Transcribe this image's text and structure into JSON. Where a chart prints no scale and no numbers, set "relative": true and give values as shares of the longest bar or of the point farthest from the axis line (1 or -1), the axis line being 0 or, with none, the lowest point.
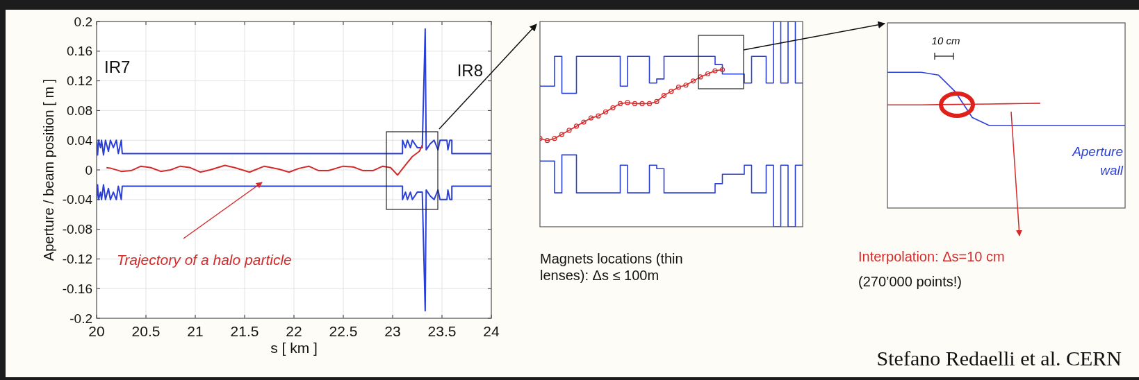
{
  "chart_data": [
    {
      "type": "line",
      "xlabel": "s [ km ]",
      "ylabel": "Aperture / beam position [ m ]",
      "xlim": [
        20,
        24
      ],
      "ylim": [
        -0.2,
        0.2
      ],
      "xticks": [
        20,
        20.5,
        21,
        21.5,
        22,
        22.5,
        23,
        23.5,
        24
      ],
      "yticks": [
        -0.2,
        -0.16,
        -0.12,
        -0.08,
        -0.04,
        0,
        0.04,
        0.08,
        0.12,
        0.16,
        0.2
      ],
      "grid": true,
      "annotations": [
        "IR7",
        "IR8",
        "Trajectory of a halo particle"
      ],
      "series": [
        {
          "color": "#2a3fd8",
          "x": [
            20,
            20.01,
            20.02,
            20.04,
            20.05,
            20.07,
            20.09,
            20.12,
            20.14,
            20.17,
            20.2,
            20.22,
            20.25,
            20.26,
            23.1,
            23.1,
            23.13,
            23.15,
            23.18,
            23.2,
            23.25,
            23.3,
            23.33,
            23.34,
            23.38,
            23.42,
            23.46,
            23.48,
            23.55,
            23.56,
            23.58,
            23.6,
            23.6,
            24
          ],
          "values": [
            0.04,
            0.02,
            0.04,
            0.03,
            0.04,
            0.02,
            0.04,
            0.025,
            0.04,
            0.03,
            0.04,
            0.022,
            0.04,
            0.022,
            0.022,
            0.04,
            0.03,
            0.04,
            0.03,
            0.04,
            0.03,
            0.03,
            0.19,
            0.027,
            0.035,
            0.04,
            0.027,
            0.04,
            0.04,
            0.027,
            0.04,
            0.04,
            0.022,
            0.022
          ]
        },
        {
          "color": "#2a3fd8",
          "x": [
            20,
            20.01,
            20.02,
            20.04,
            20.05,
            20.07,
            20.09,
            20.12,
            20.14,
            20.17,
            20.2,
            20.22,
            20.25,
            20.26,
            23.1,
            23.1,
            23.13,
            23.15,
            23.18,
            23.2,
            23.25,
            23.3,
            23.33,
            23.34,
            23.38,
            23.42,
            23.46,
            23.48,
            23.55,
            23.56,
            23.58,
            23.6,
            23.6,
            24
          ],
          "values": [
            -0.04,
            -0.02,
            -0.04,
            -0.03,
            -0.04,
            -0.02,
            -0.04,
            -0.025,
            -0.04,
            -0.03,
            -0.04,
            -0.022,
            -0.04,
            -0.022,
            -0.022,
            -0.04,
            -0.03,
            -0.04,
            -0.03,
            -0.04,
            -0.03,
            -0.03,
            -0.19,
            -0.027,
            -0.035,
            -0.04,
            -0.027,
            -0.04,
            -0.04,
            -0.027,
            -0.04,
            -0.04,
            -0.022,
            -0.022
          ]
        },
        {
          "color": "#d42a2a",
          "x": [
            20.1,
            20.15,
            20.25,
            20.35,
            20.45,
            20.55,
            20.65,
            20.75,
            20.85,
            20.95,
            21.05,
            21.15,
            21.3,
            21.4,
            21.55,
            21.7,
            21.85,
            21.95,
            22.05,
            22.15,
            22.25,
            22.35,
            22.5,
            22.6,
            22.7,
            22.8,
            22.9,
            22.98,
            23.05,
            23.15,
            23.2,
            23.27,
            23.3
          ],
          "values": [
            0.003,
            0.002,
            -0.002,
            -0.001,
            0.005,
            0.003,
            -0.002,
            0,
            0.005,
            0.003,
            -0.003,
            0,
            0.006,
            0.003,
            -0.003,
            0.005,
            0.001,
            -0.003,
            0.002,
            0.005,
            -0.001,
            -0.001,
            0.005,
            0.004,
            -0.001,
            -0.001,
            0.005,
            0.003,
            -0.007,
            0.01,
            0.018,
            0.025,
            0.033
          ]
        }
      ]
    },
    {
      "type": "line",
      "relative": true,
      "categories": [
        null,
        null,
        null,
        null,
        null,
        null,
        null,
        null,
        null,
        null,
        null,
        null,
        null,
        null,
        null,
        null,
        null,
        null,
        null,
        null,
        null,
        null,
        null,
        null,
        null,
        null,
        null,
        null,
        null,
        null,
        null,
        null,
        null,
        null,
        null,
        null,
        null
      ],
      "annotations": [
        "Magnets locations (thin lenses): Δs ≤ 100m"
      ],
      "series": [
        {
          "type": "step",
          "color": "#2a3fd8",
          "values": [
            0.685,
            0.685,
            0.83,
            0.65,
            0.65,
            0.83,
            0.83,
            0.83,
            0.83,
            0.83,
            0.83,
            0.685,
            0.83,
            0.83,
            0.83,
            0.7,
            0.72,
            0.83,
            0.83,
            0.83,
            0.83,
            0.83,
            0.83,
            0.83,
            0.79,
            0.744,
            0.744,
            0.744,
            0.7,
            0.83,
            0.83,
            0.7,
            1,
            0.7,
            1,
            0.7,
            0.7
          ]
        },
        {
          "type": "step",
          "color": "#2a3fd8",
          "values": [
            0.32,
            0.32,
            0.165,
            0.35,
            0.35,
            0.165,
            0.165,
            0.165,
            0.165,
            0.165,
            0.165,
            0.3,
            0.165,
            0.165,
            0.165,
            0.3,
            0.283,
            0.165,
            0.165,
            0.165,
            0.165,
            0.165,
            0.165,
            0.165,
            0.21,
            0.256,
            0.256,
            0.256,
            0.3,
            0.165,
            0.165,
            0.3,
            0,
            0.3,
            0,
            0.3,
            0.3
          ]
        },
        {
          "type": "line",
          "color": "#d42a2a",
          "marker": "circle",
          "values": [
            0.43,
            0.42,
            0.43,
            0.45,
            0.47,
            0.49,
            0.51,
            0.53,
            0.54,
            0.56,
            0.58,
            0.6,
            0.605,
            0.6,
            0.6,
            0.6,
            0.61,
            0.64,
            0.66,
            0.68,
            0.69,
            0.71,
            0.73,
            0.745,
            0.76,
            0.765,
            null,
            null,
            null,
            null,
            null,
            null,
            null,
            null,
            null,
            null,
            null
          ]
        }
      ]
    },
    {
      "type": "line",
      "relative": true,
      "categories": [
        null,
        null,
        null,
        null,
        null,
        null,
        null,
        null,
        null,
        null,
        null,
        null,
        null,
        null,
        null
      ],
      "annotations": [
        "10 cm",
        "Interpolation: Δs=10 cm",
        "(270’000 points!)",
        "Stefano Redaelli et al. CERN"
      ],
      "series": [
        {
          "name": "Aperture wall",
          "color": "#2a3fd8",
          "values": [
            1,
            1,
            1,
            0.98,
            0.856,
            0.667,
            0.608,
            0.608,
            0.608,
            0.608,
            0.608,
            0.608,
            0.608,
            0.608,
            0.608
          ]
        },
        {
          "color": "#d42a2a",
          "values": [
            0.76,
            0.76,
            0.76,
            0.762,
            0.763,
            0.765,
            0.766,
            0.768,
            0.77,
            0.772,
            null,
            null,
            null,
            null,
            null
          ]
        }
      ]
    }
  ]
}
